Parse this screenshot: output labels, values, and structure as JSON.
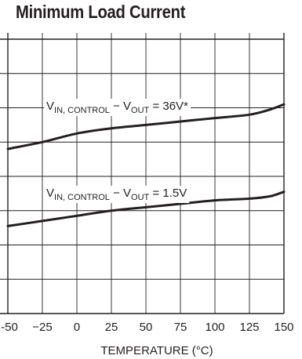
{
  "chart_data": {
    "type": "line",
    "title": "Minimum Load Current",
    "xlabel": "TEMPERATURE (°C)",
    "ylabel": "",
    "xlim": [
      -50,
      150
    ],
    "ylim": [
      0,
      8
    ],
    "x_ticks": [
      -50,
      -25,
      0,
      25,
      50,
      75,
      100,
      125,
      150
    ],
    "x_tick_labels": [
      "-50",
      "−25",
      "0",
      "25",
      "50",
      "75",
      "100",
      "125",
      "150"
    ],
    "y_gridlines": [
      0,
      1,
      2,
      3,
      4,
      5,
      6,
      7,
      8
    ],
    "grid": true,
    "legend": "none",
    "series": [
      {
        "label_main": "V",
        "label_sub1": "IN, CONTROL",
        "label_mid": " − V",
        "label_sub2": "OUT",
        "label_tail": " = 36V*",
        "color": "#231f20",
        "x": [
          -50,
          -25,
          0,
          25,
          50,
          75,
          100,
          125,
          140,
          150
        ],
        "y": [
          4.8,
          5.0,
          5.25,
          5.4,
          5.5,
          5.6,
          5.7,
          5.8,
          5.95,
          6.1
        ]
      },
      {
        "label_main": "V",
        "label_sub1": "IN, CONTROL",
        "label_mid": " − V",
        "label_sub2": "OUT",
        "label_tail": " = 1.5V",
        "color": "#231f20",
        "x": [
          -50,
          -25,
          0,
          25,
          50,
          75,
          100,
          125,
          140,
          150
        ],
        "y": [
          2.55,
          2.7,
          2.85,
          3.0,
          3.1,
          3.2,
          3.3,
          3.35,
          3.42,
          3.55
        ]
      }
    ]
  }
}
